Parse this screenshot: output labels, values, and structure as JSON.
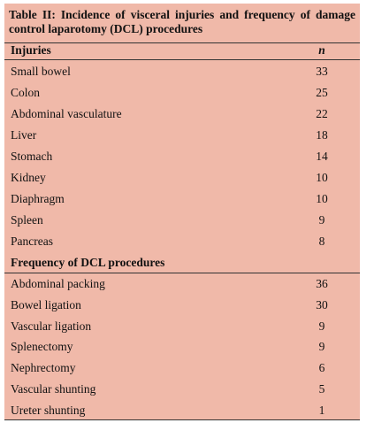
{
  "title": "Table II: Incidence of visceral injuries and frequency of damage control laparotomy (DCL) procedures",
  "table": {
    "header": [
      "Injuries",
      "n"
    ],
    "injuries": [
      [
        "Small bowel",
        33
      ],
      [
        "Colon",
        25
      ],
      [
        "Abdominal vasculature",
        22
      ],
      [
        "Liver",
        18
      ],
      [
        "Stomach",
        14
      ],
      [
        "Kidney",
        10
      ],
      [
        "Diaphragm",
        10
      ],
      [
        "Spleen",
        9
      ],
      [
        "Pancreas",
        8
      ]
    ],
    "procedures_heading": "Frequency of DCL procedures",
    "procedures": [
      [
        "Abdominal packing",
        36
      ],
      [
        "Bowel ligation",
        30
      ],
      [
        "Vascular ligation",
        9
      ],
      [
        "Splenectomy",
        9
      ],
      [
        "Nephrectomy",
        6
      ],
      [
        "Vascular shunting",
        5
      ],
      [
        "Ureter shunting",
        1
      ]
    ]
  }
}
